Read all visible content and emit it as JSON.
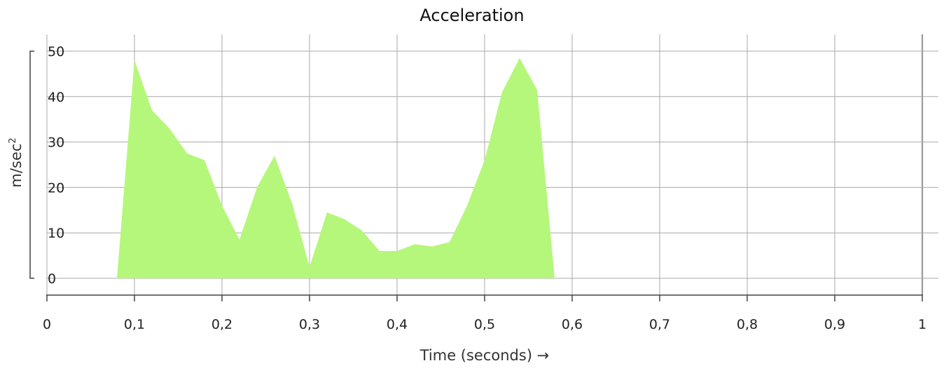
{
  "chart_data": {
    "type": "area",
    "title": "Acceleration",
    "xlabel": "Time (seconds) →",
    "ylabel_base": "m/sec",
    "ylabel_sup": "2",
    "xlim": [
      0,
      1
    ],
    "ylim": [
      0,
      50
    ],
    "x_ticks": [
      0,
      0.1,
      0.2,
      0.3,
      0.4,
      0.5,
      0.6,
      0.7,
      0.8,
      0.9,
      1
    ],
    "x_tick_labels": [
      "0",
      "0,1",
      "0,2",
      "0,3",
      "0,4",
      "0,5",
      "0,6",
      "0,7",
      "0,8",
      "0,9",
      "1"
    ],
    "y_ticks": [
      0,
      10,
      20,
      30,
      40,
      50
    ],
    "y_tick_labels": [
      "0",
      "10",
      "20",
      "30",
      "40",
      "50"
    ],
    "grid": true,
    "fill_color": "#b5f77a",
    "series": [
      {
        "x": [
          0.08,
          0.1,
          0.12,
          0.14,
          0.16,
          0.18,
          0.2,
          0.22,
          0.24,
          0.26,
          0.28,
          0.3,
          0.32,
          0.34,
          0.36,
          0.38,
          0.4,
          0.42,
          0.44,
          0.46,
          0.48,
          0.5,
          0.52,
          0.54,
          0.56,
          0.58
        ],
        "values": [
          0,
          48,
          37,
          33,
          27.5,
          26,
          16,
          8.5,
          20,
          27,
          16.5,
          2.5,
          14.5,
          13,
          10.5,
          6,
          6,
          7.5,
          7,
          8,
          16,
          26,
          41,
          48.5,
          41.5,
          0
        ]
      }
    ]
  }
}
